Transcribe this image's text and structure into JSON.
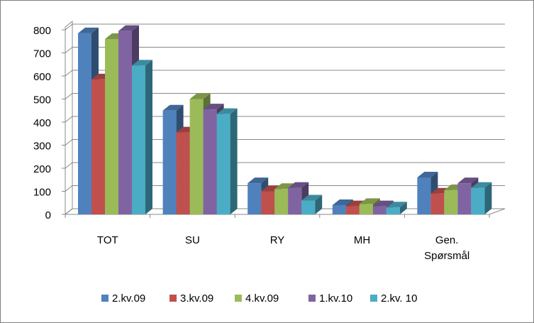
{
  "chart_data": {
    "type": "bar3d",
    "categories": [
      "TOT",
      "SU",
      "RY",
      "MH",
      "Gen. Spørsmål"
    ],
    "series": [
      {
        "name": "2.kv.09",
        "color": "#4f81bd",
        "values": [
          785,
          450,
          135,
          40,
          160
        ]
      },
      {
        "name": "3.kv.09",
        "color": "#c0504d",
        "values": [
          585,
          355,
          100,
          35,
          90
        ]
      },
      {
        "name": "4.kv.09",
        "color": "#9bbb59",
        "values": [
          760,
          500,
          110,
          45,
          105
        ]
      },
      {
        "name": "1.kv.10",
        "color": "#8064a2",
        "values": [
          795,
          455,
          115,
          35,
          135
        ]
      },
      {
        "name": "2.kv. 10",
        "color": "#4bacc6",
        "values": [
          645,
          435,
          60,
          30,
          115
        ]
      }
    ],
    "ylim": [
      0,
      800
    ],
    "yticks": [
      0,
      100,
      200,
      300,
      400,
      500,
      600,
      700,
      800
    ],
    "grid": true
  }
}
